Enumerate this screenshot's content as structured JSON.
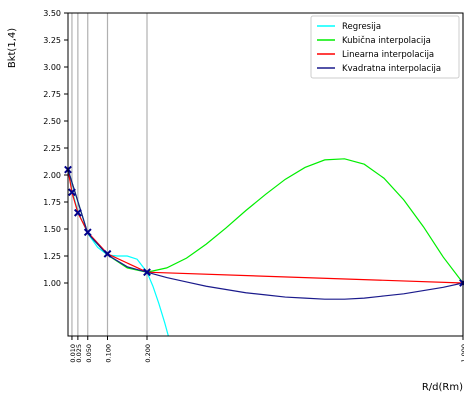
{
  "chart_data": {
    "type": "line",
    "title": "",
    "xlabel": "R/d(Rm)",
    "ylabel": "Bkt(1,4)",
    "xlim": [
      0.0,
      1.0
    ],
    "ylim": [
      0.5,
      3.5
    ],
    "grid": "vertical-at-data-points",
    "legend_placement": "top-right",
    "x_ticks": [
      0.01,
      0.025,
      0.05,
      0.1,
      0.2,
      1.0
    ],
    "x_tick_labels": [
      "0.010",
      "0.025",
      "0.050",
      "0.100",
      "0.200",
      "1.000"
    ],
    "y_ticks": [
      1.0,
      1.25,
      1.5,
      1.75,
      2.0,
      2.25,
      2.5,
      2.75,
      3.0,
      3.25,
      3.5
    ],
    "y_tick_labels": [
      "1.00",
      "1.25",
      "1.50",
      "1.75",
      "2.00",
      "2.25",
      "2.50",
      "2.75",
      "3.00",
      "3.25",
      "3.50"
    ],
    "markers": {
      "x": [
        0.0,
        0.01,
        0.025,
        0.05,
        0.1,
        0.2,
        1.0
      ],
      "y": [
        2.05,
        1.84,
        1.65,
        1.47,
        1.27,
        1.1,
        1.0
      ],
      "color": "#00008b"
    },
    "series": [
      {
        "name": "Regresija",
        "color": "#00ffff",
        "x": [
          0.0,
          0.01,
          0.025,
          0.05,
          0.075,
          0.1,
          0.125,
          0.15,
          0.175,
          0.2,
          0.215,
          0.23,
          0.245,
          0.26,
          0.268
        ],
        "y": [
          2.05,
          1.86,
          1.66,
          1.46,
          1.33,
          1.26,
          1.25,
          1.25,
          1.22,
          1.1,
          0.97,
          0.81,
          0.63,
          0.43,
          0.3
        ]
      },
      {
        "name": "Kubična interpolacija",
        "color": "#00ee00",
        "x": [
          0.0,
          0.05,
          0.1,
          0.15,
          0.2,
          0.25,
          0.3,
          0.35,
          0.4,
          0.45,
          0.5,
          0.55,
          0.6,
          0.65,
          0.7,
          0.75,
          0.8,
          0.85,
          0.9,
          0.95,
          1.0
        ],
        "y": [
          2.05,
          1.46,
          1.26,
          1.14,
          1.1,
          1.14,
          1.23,
          1.36,
          1.51,
          1.67,
          1.82,
          1.96,
          2.07,
          2.14,
          2.15,
          2.1,
          1.97,
          1.77,
          1.52,
          1.24,
          1.0
        ]
      },
      {
        "name": "Linearna interpolacija",
        "color": "#ff0000",
        "x": [
          0.0,
          0.01,
          0.025,
          0.05,
          0.1,
          0.2,
          1.0
        ],
        "y": [
          2.05,
          1.84,
          1.65,
          1.47,
          1.27,
          1.1,
          1.0
        ]
      },
      {
        "name": "Kvadratna interpolacija",
        "color": "#1a1a8c",
        "x": [
          0.0,
          0.05,
          0.1,
          0.15,
          0.2,
          0.25,
          0.3,
          0.35,
          0.4,
          0.45,
          0.5,
          0.55,
          0.6,
          0.65,
          0.7,
          0.75,
          0.8,
          0.85,
          0.9,
          0.95,
          1.0
        ],
        "y": [
          2.05,
          1.46,
          1.26,
          1.15,
          1.1,
          1.05,
          1.01,
          0.97,
          0.94,
          0.91,
          0.89,
          0.87,
          0.86,
          0.85,
          0.85,
          0.86,
          0.88,
          0.9,
          0.93,
          0.96,
          1.0
        ]
      }
    ]
  }
}
